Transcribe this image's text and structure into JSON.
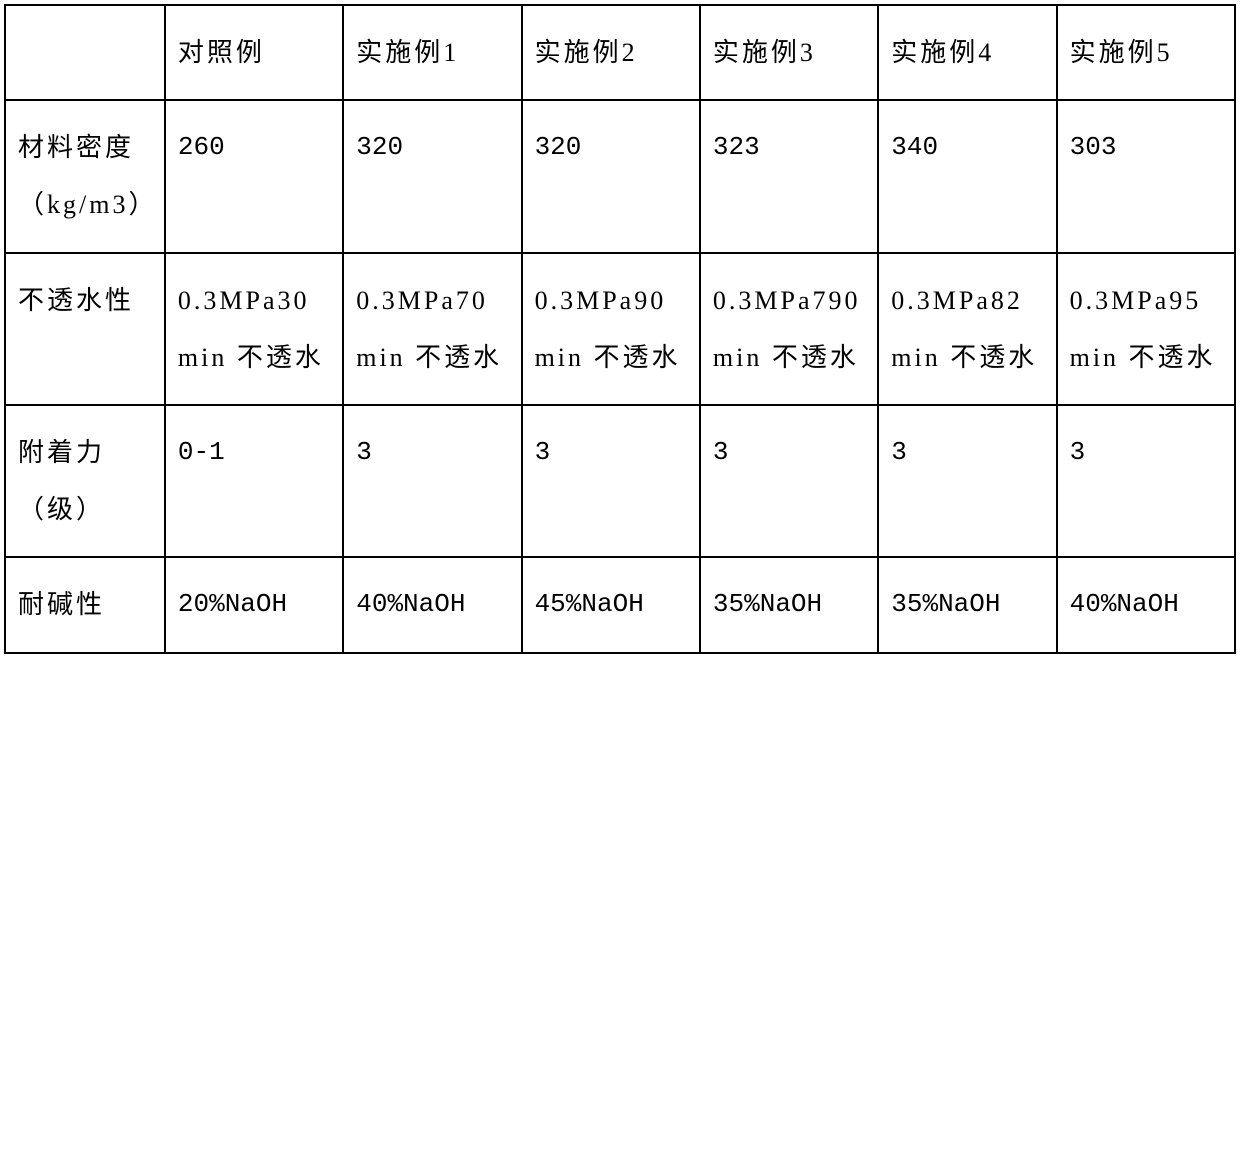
{
  "table": {
    "columns": [
      "",
      "对照例",
      "实施例1",
      "实施例2",
      "实施例3",
      "实施例4",
      "实施例5"
    ],
    "rows": [
      {
        "label": "材料密度（kg/m3）",
        "values": [
          "260",
          "320",
          "320",
          "323",
          "340",
          "303"
        ]
      },
      {
        "label": "不透水性",
        "values": [
          "0.3MPa30min 不透水",
          "0.3MPa70min 不透水",
          "0.3MPa90min 不透水",
          "0.3MPa790min 不透水",
          "0.3MPa82min 不透水",
          "0.3MPa95min 不透水"
        ]
      },
      {
        "label": "附着力（级）",
        "values": [
          "0-1",
          "3",
          "3",
          "3",
          "3",
          "3"
        ]
      },
      {
        "label": "耐碱性",
        "values": [
          "20%NaOH",
          "40%NaOH",
          "45%NaOH",
          "35%NaOH",
          "35%NaOH",
          "40%NaOH"
        ]
      }
    ],
    "style": {
      "border_color": "#000000",
      "border_width": 2,
      "background": "#ffffff",
      "font_size": 26,
      "line_height": 2.2,
      "letter_spacing": 3
    }
  }
}
